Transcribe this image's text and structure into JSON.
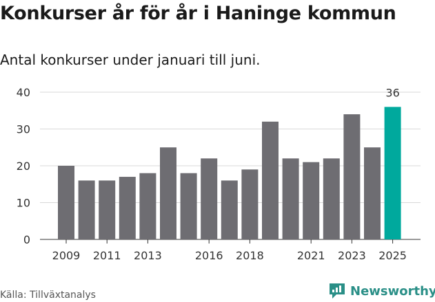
{
  "title": "Konkurser år för år i Haninge kommun",
  "subtitle": "Antal konkurser under januari till juni.",
  "source": "Källa: Tillväxtanalys",
  "brand": {
    "name": "Newsworthy",
    "icon": "newsworthy-logo-icon"
  },
  "colors": {
    "bar": "#6e6d72",
    "highlight": "#00a99d",
    "brand": "#2a8f87",
    "grid": "#d9d9d9"
  },
  "chart_data": {
    "type": "bar",
    "categories": [
      "2009",
      "2010",
      "2011",
      "2012",
      "2013",
      "2014",
      "2015",
      "2016",
      "2017",
      "2018",
      "2019",
      "2020",
      "2021",
      "2022",
      "2023",
      "2024",
      "2025"
    ],
    "values": [
      20,
      16,
      16,
      17,
      18,
      25,
      18,
      22,
      16,
      19,
      32,
      22,
      21,
      22,
      34,
      25,
      36
    ],
    "x_tick_labels": [
      "2009",
      "2011",
      "2013",
      "2016",
      "2018",
      "2021",
      "2023",
      "2025"
    ],
    "y_ticks": [
      0,
      10,
      20,
      30,
      40
    ],
    "ylim": [
      0,
      40
    ],
    "highlight_category": "2025",
    "data_labels": [
      {
        "category": "2025",
        "text": "36"
      }
    ],
    "grid": true
  }
}
